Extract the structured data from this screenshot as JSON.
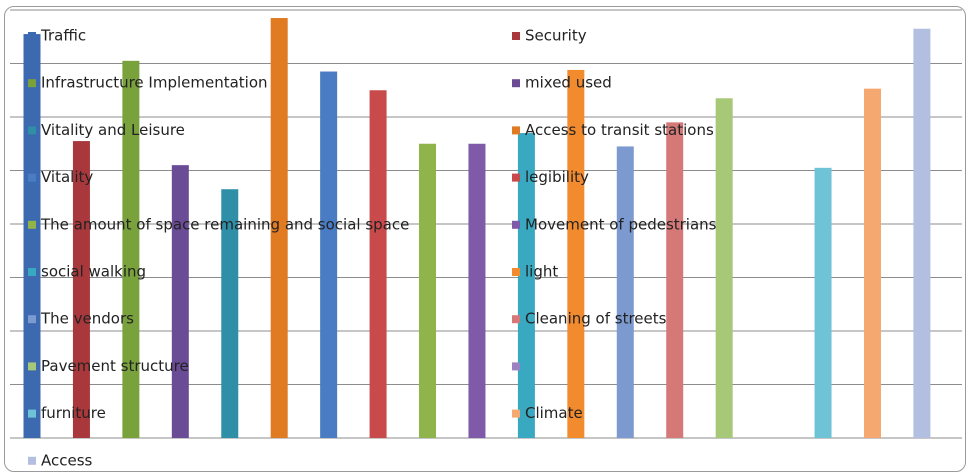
{
  "chart_data": {
    "type": "bar",
    "title": "",
    "xlabel": "",
    "ylabel": "",
    "grid": true,
    "ylim": [
      0,
      8
    ],
    "legend_position": "overlay-left",
    "series": [
      {
        "name": "Traffic",
        "value": 7.55,
        "color": "#3c69b0"
      },
      {
        "name": "Security",
        "value": 5.55,
        "color": "#a8383c"
      },
      {
        "name": "Infrastructure Implementation",
        "value": 7.05,
        "color": "#7aa23c"
      },
      {
        "name": "mixed used",
        "value": 5.1,
        "color": "#6a4c96"
      },
      {
        "name": "Vitality and Leisure",
        "value": 4.65,
        "color": "#2e8fa7"
      },
      {
        "name": "Access to transit stations",
        "value": 7.85,
        "color": "#e07b22"
      },
      {
        "name": "Vitality",
        "value": 6.85,
        "color": "#4a7cc4"
      },
      {
        "name": "legibility",
        "value": 6.5,
        "color": "#c84a4a"
      },
      {
        "name": "The amount of space remaining and social space",
        "value": 5.5,
        "color": "#8fb44c"
      },
      {
        "name": "Movement of pedestrians",
        "value": 5.5,
        "color": "#7e5aa8"
      },
      {
        "name": "social walking",
        "value": 5.7,
        "color": "#39a9c2"
      },
      {
        "name": "light",
        "value": 6.88,
        "color": "#f18b2e"
      },
      {
        "name": "The vendors",
        "value": 5.45,
        "color": "#7c9ad0"
      },
      {
        "name": "Cleaning of streets",
        "value": 5.9,
        "color": "#d57978"
      },
      {
        "name": "Pavement structure",
        "value": 6.35,
        "color": "#a6c877"
      },
      {
        "name": "",
        "value": 0,
        "color": "#9c82c0"
      },
      {
        "name": "furniture",
        "value": 5.05,
        "color": "#6fc3d6"
      },
      {
        "name": "Climate",
        "value": 6.53,
        "color": "#f5a86f"
      },
      {
        "name": "Access",
        "value": 7.65,
        "color": "#b3bfe0"
      }
    ]
  }
}
